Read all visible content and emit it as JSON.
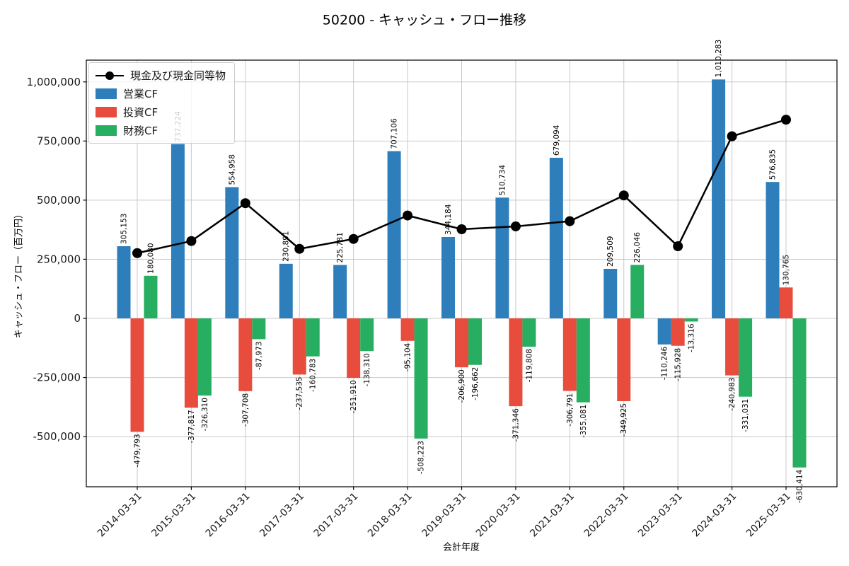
{
  "chart_data": {
    "type": "bar",
    "title": "50200 - キャッシュ・フロー推移",
    "xlabel": "会計年度",
    "ylabel": "キャッシュ・フロー（百万円）",
    "categories": [
      "2014-03-31",
      "2015-03-31",
      "2016-03-31",
      "2017-03-31",
      "2017-03-31",
      "2018-03-31",
      "2019-03-31",
      "2020-03-31",
      "2021-03-31",
      "2022-03-31",
      "2023-03-31",
      "2024-03-31",
      "2025-03-31"
    ],
    "series": [
      {
        "key": "operating",
        "name": "営業CF",
        "type": "bar",
        "color": "#2e7ebc",
        "values": [
          305153,
          737224,
          554958,
          230891,
          225781,
          707106,
          344184,
          510734,
          679094,
          209509,
          -110246,
          1010283,
          576835
        ]
      },
      {
        "key": "investing",
        "name": "投資CF",
        "type": "bar",
        "color": "#e74c3c",
        "values": [
          -479793,
          -377817,
          -307708,
          -237535,
          -251910,
          -95104,
          -206900,
          -371346,
          -306791,
          -349925,
          -115928,
          -240983,
          130765
        ]
      },
      {
        "key": "financing",
        "name": "財務CF",
        "type": "bar",
        "color": "#27ae60",
        "values": [
          180080,
          -326310,
          -87973,
          -160783,
          -138310,
          -508223,
          -196662,
          -119808,
          -355081,
          226046,
          -13316,
          -331031,
          -630414
        ]
      },
      {
        "key": "cash",
        "name": "現金及び現金同等物",
        "type": "line",
        "color": "#000000",
        "values": [
          276000,
          327000,
          487000,
          294000,
          336000,
          435000,
          377000,
          389000,
          411000,
          520000,
          305000,
          770000,
          840000
        ]
      }
    ],
    "yticks": [
      1000000,
      750000,
      500000,
      250000,
      0,
      -250000,
      -500000
    ],
    "ylim": [
      -712000,
      1092000
    ],
    "grid": true,
    "legend_position": "upper-left",
    "bar_label_rotation": 90,
    "xtick_rotation": 45
  }
}
